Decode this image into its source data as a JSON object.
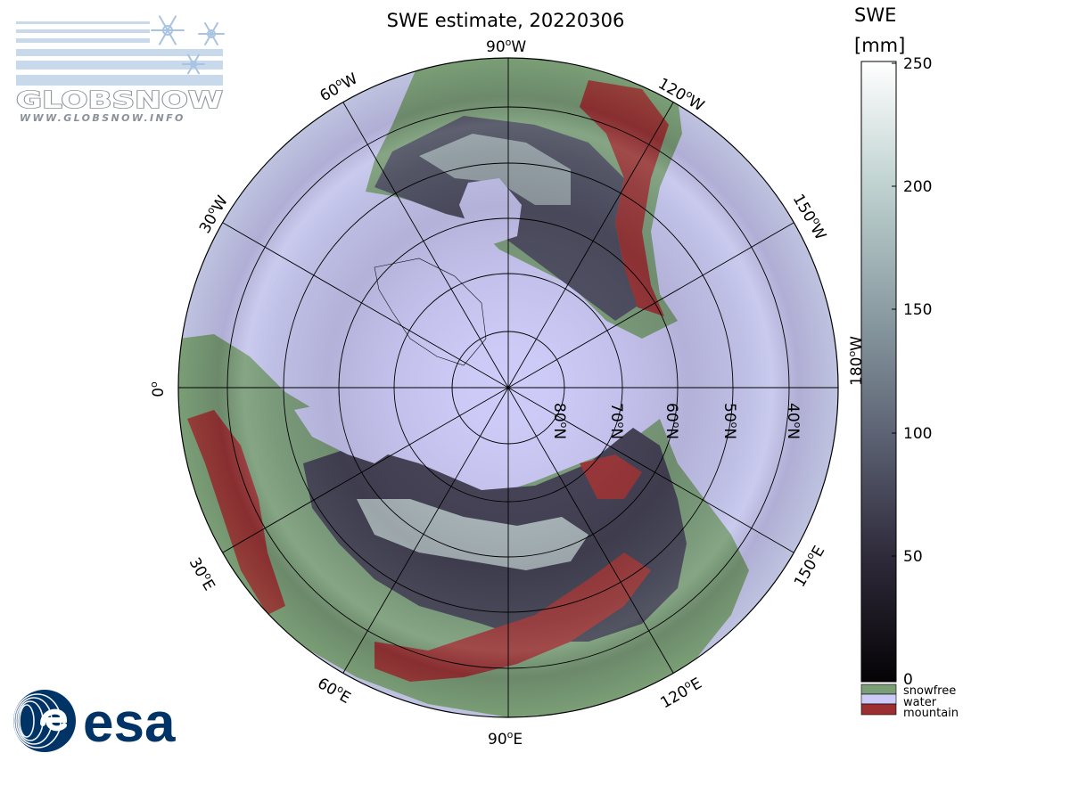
{
  "title": "SWE estimate, 20220306",
  "colorbar": {
    "title_line1": "SWE",
    "title_line2": "[mm]",
    "ticks": [
      "250",
      "200",
      "150",
      "100",
      "50",
      "0"
    ],
    "range": [
      0,
      250
    ],
    "gradient": [
      "#ffffff",
      "#bfd2d0",
      "#8c9ea4",
      "#5d6374",
      "#2e2a3a",
      "#050305"
    ]
  },
  "legend": [
    {
      "label": "snowfree",
      "color": "#7a9e76"
    },
    {
      "label": "water",
      "color": "#cdcbf7"
    },
    {
      "label": "mountain",
      "color": "#9c2f2f"
    }
  ],
  "meridian_labels": {
    "90w": [
      "90",
      "W"
    ],
    "120w": [
      "120",
      "W"
    ],
    "150w": [
      "150",
      "W"
    ],
    "180w": [
      "180",
      "W"
    ],
    "60w": [
      "60",
      "W"
    ],
    "30w": [
      "30",
      "W"
    ],
    "0": [
      "0",
      ""
    ],
    "30e": [
      "30",
      "E"
    ],
    "60e": [
      "60",
      "E"
    ],
    "90e": [
      "90",
      "E"
    ],
    "120e": [
      "120",
      "E"
    ],
    "150e": [
      "150",
      "E"
    ]
  },
  "parallel_labels": {
    "80n": [
      "80",
      "N"
    ],
    "70n": [
      "70",
      "N"
    ],
    "60n": [
      "60",
      "N"
    ],
    "50n": [
      "50",
      "N"
    ],
    "40n": [
      "40",
      "N"
    ]
  },
  "globsnow": {
    "name": "GLOBSNOW",
    "url": "WWW.GLOBSNOW.INFO"
  },
  "esa": {
    "name": "esa"
  },
  "colors": {
    "water": "#cdcbf7",
    "snowfree": "#7a9e76",
    "mountain": "#9c2f2f"
  }
}
